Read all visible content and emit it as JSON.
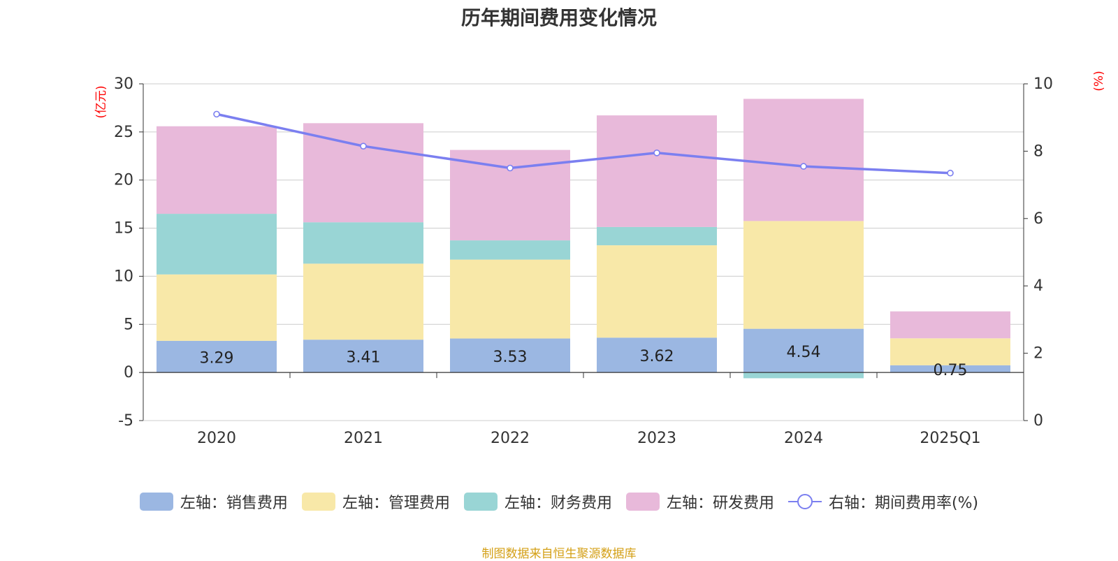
{
  "chart_data": {
    "type": "bar",
    "stacked": true,
    "title": "历年期间费用变化情况",
    "categories": [
      "2020",
      "2021",
      "2022",
      "2023",
      "2024",
      "2025Q1"
    ],
    "y_left": {
      "label": "(亿元)",
      "min": -5,
      "max": 30,
      "ticks": [
        -5,
        0,
        5,
        10,
        15,
        20,
        25,
        30
      ]
    },
    "y_right": {
      "label": "(%)",
      "min": 0,
      "max": 10,
      "ticks": [
        0,
        2,
        4,
        6,
        8,
        10
      ]
    },
    "series": [
      {
        "name": "左轴：销售费用",
        "axis": "left",
        "color": "#9bb7e2",
        "values": [
          3.29,
          3.41,
          3.53,
          3.62,
          4.54,
          0.75
        ],
        "labels": [
          "3.29",
          "3.41",
          "3.53",
          "3.62",
          "4.54",
          "0.75"
        ]
      },
      {
        "name": "左轴：管理费用",
        "axis": "left",
        "color": "#f8e8a8",
        "values": [
          6.9,
          7.9,
          8.2,
          9.6,
          11.2,
          2.8
        ]
      },
      {
        "name": "左轴：财务费用",
        "axis": "left",
        "color": "#99d5d5",
        "values": [
          6.3,
          4.3,
          2.0,
          1.9,
          -0.6,
          0.0
        ]
      },
      {
        "name": "左轴：研发费用",
        "axis": "left",
        "color": "#e8b9da",
        "values": [
          9.1,
          10.3,
          9.4,
          11.6,
          12.7,
          2.8
        ]
      },
      {
        "name": "右轴：期间费用率(%)",
        "axis": "right",
        "type": "line",
        "color": "#7b7ff0",
        "values": [
          9.1,
          8.15,
          7.5,
          7.95,
          7.55,
          7.35
        ]
      }
    ],
    "legend_position": "bottom",
    "grid": true
  },
  "source": "制图数据来自恒生聚源数据库"
}
